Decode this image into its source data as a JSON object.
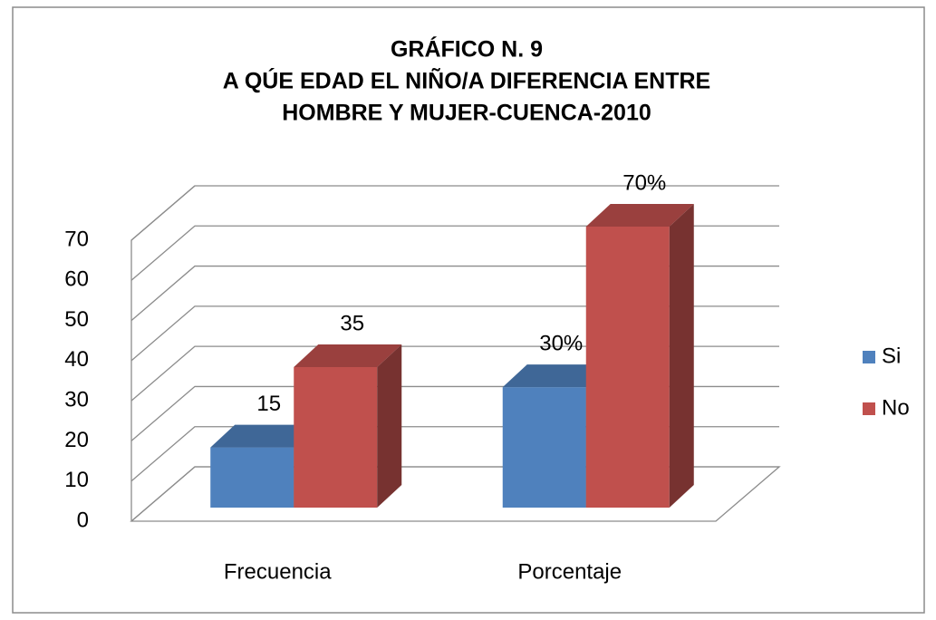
{
  "chart_data": {
    "type": "bar3d",
    "title": [
      "GRÁFICO N. 9",
      "A QÚE EDAD EL NIÑO/A DIFERENCIA ENTRE",
      "HOMBRE Y MUJER-CUENCA-2010"
    ],
    "categories": [
      "Frecuencia",
      "Porcentaje"
    ],
    "series": [
      {
        "name": "Si",
        "color": "#4f81bd",
        "values": [
          15,
          30
        ],
        "value_labels": [
          "15",
          "30%"
        ]
      },
      {
        "name": "No",
        "color": "#c0504d",
        "values": [
          35,
          70
        ],
        "value_labels": [
          "35",
          "70%"
        ]
      }
    ],
    "ylim": [
      0,
      70
    ],
    "yticks": [
      0,
      10,
      20,
      30,
      40,
      50,
      60,
      70
    ],
    "grid": true,
    "legend": "right"
  }
}
